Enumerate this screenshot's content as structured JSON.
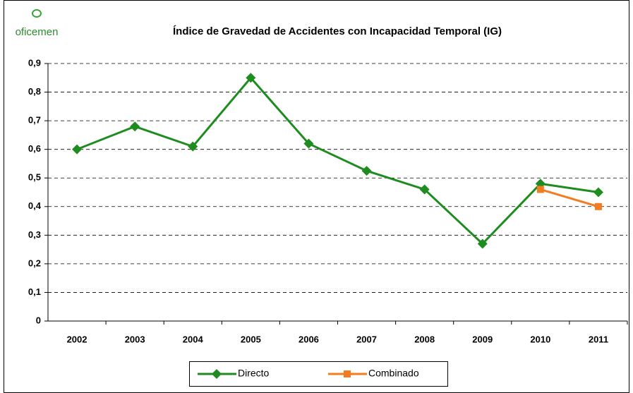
{
  "chart_data": {
    "type": "line",
    "title": "Índice de Gravedad de Accidentes con Incapacidad Temporal (IG)",
    "logo": "oficemen",
    "categories": [
      "2002",
      "2003",
      "2004",
      "2005",
      "2006",
      "2007",
      "2008",
      "2009",
      "2010",
      "2011"
    ],
    "series": [
      {
        "name": "Directo",
        "color": "#1e8c1e",
        "marker": "diamond",
        "values": [
          0.6,
          0.68,
          0.61,
          0.85,
          0.62,
          0.525,
          0.46,
          0.27,
          0.48,
          0.45
        ]
      },
      {
        "name": "Combinado",
        "color": "#f47c20",
        "marker": "square",
        "values": [
          null,
          null,
          null,
          null,
          null,
          null,
          null,
          null,
          0.46,
          0.4
        ]
      }
    ],
    "ylim": [
      0,
      0.9
    ],
    "yticks": [
      0,
      {
        "value": 0.1,
        "label": "0,1"
      },
      {
        "value": 0.2,
        "label": "0,2"
      },
      {
        "value": 0.3,
        "label": "0,3"
      },
      {
        "value": 0.4,
        "label": "0,4"
      },
      {
        "value": 0.5,
        "label": "0,5"
      },
      {
        "value": 0.6,
        "label": "0,6"
      },
      {
        "value": 0.7,
        "label": "0,7"
      },
      {
        "value": 0.8,
        "label": "0,8"
      },
      {
        "value": 0.9,
        "label": "0,9"
      }
    ],
    "grid": true,
    "legend": "bottom"
  }
}
